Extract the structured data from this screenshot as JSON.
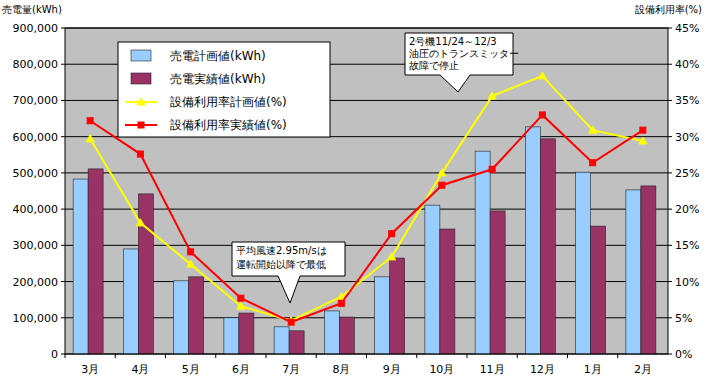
{
  "chart_data": {
    "type": "bar",
    "y_label": "売電量(kWh)",
    "y2_label": "設備利用率(%)",
    "categories": [
      "3月",
      "4月",
      "5月",
      "6月",
      "7月",
      "8月",
      "9月",
      "10月",
      "11月",
      "12月",
      "1月",
      "2月"
    ],
    "series": [
      {
        "name": "売電計画値(kWh)",
        "type": "bar",
        "color": "#99ccff",
        "axis": "y",
        "values": [
          483000,
          290000,
          202000,
          100000,
          75000,
          119000,
          213000,
          411000,
          560000,
          627000,
          502000,
          453000
        ]
      },
      {
        "name": "売電実績値(kWh)",
        "type": "bar",
        "color": "#993366",
        "axis": "y",
        "values": [
          511000,
          442000,
          213000,
          113000,
          64000,
          102000,
          265000,
          345000,
          395000,
          594000,
          353000,
          464000
        ]
      },
      {
        "name": "設備利用率計画値(%)",
        "type": "line",
        "color": "#ffff00",
        "marker": "triangle",
        "axis": "y2",
        "values": [
          29.7,
          18.1,
          12.4,
          6.6,
          4.6,
          7.9,
          13.4,
          25.0,
          35.6,
          38.4,
          30.9,
          29.4
        ]
      },
      {
        "name": "設備利用率実績値(%)",
        "type": "line",
        "color": "#ff0000",
        "marker": "square",
        "axis": "y2",
        "values": [
          32.2,
          27.6,
          14.1,
          7.7,
          4.4,
          7.0,
          16.6,
          23.3,
          25.5,
          33.0,
          26.4,
          30.9
        ]
      }
    ],
    "ylim": [
      0,
      900000
    ],
    "yticks": [
      0,
      {
        "value": 100000,
        "label": "100,000"
      },
      {
        "value": 200000,
        "label": "200,000"
      },
      {
        "value": 300000,
        "label": "300,000"
      },
      {
        "value": 400000,
        "label": "400,000"
      },
      {
        "value": 500000,
        "label": "500,000"
      },
      {
        "value": 600000,
        "label": "600,000"
      },
      {
        "value": 700000,
        "label": "700,000"
      },
      {
        "value": 800000,
        "label": "800,000"
      },
      {
        "value": 900000,
        "label": "900,000"
      }
    ],
    "y2lim": [
      0,
      45
    ],
    "y2ticks": [
      {
        "value": 0,
        "label": "0%"
      },
      {
        "value": 5,
        "label": "5%"
      },
      {
        "value": 10,
        "label": "10%"
      },
      {
        "value": 15,
        "label": "15%"
      },
      {
        "value": 20,
        "label": "20%"
      },
      {
        "value": 25,
        "label": "25%"
      },
      {
        "value": 30,
        "label": "30%"
      },
      {
        "value": 35,
        "label": "35%"
      },
      {
        "value": 40,
        "label": "40%"
      },
      {
        "value": 45,
        "label": "45%"
      }
    ],
    "grid": true,
    "legend": "upper left",
    "annotations": [
      {
        "text": [
          "平均風速2.95m/sは",
          "運転開始以降で最低"
        ]
      },
      {
        "text": [
          "2号機11/24～12/3",
          "油圧のトランスミッター",
          "故障で停止"
        ]
      }
    ]
  }
}
